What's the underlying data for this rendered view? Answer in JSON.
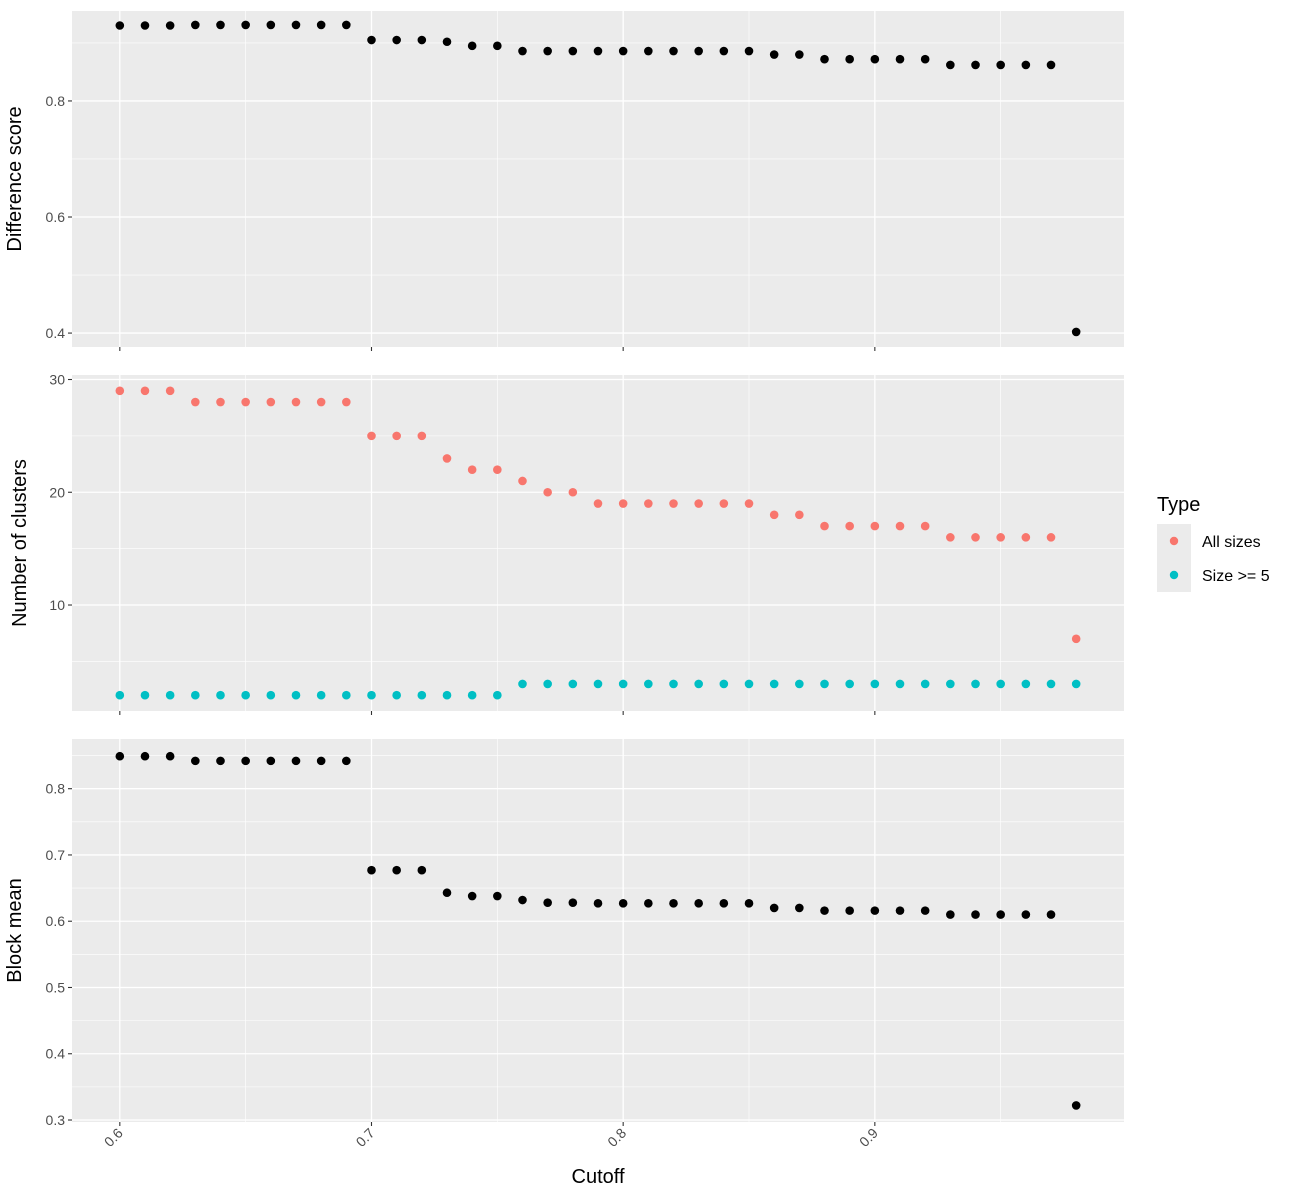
{
  "chart_data": {
    "type": "scatter",
    "x_label": "Cutoff",
    "x_tick_labels": [
      "0.6",
      "0.7",
      "0.8",
      "0.9"
    ],
    "x_ticks": [
      0.6,
      0.7,
      0.8,
      0.9
    ],
    "x_range": [
      0.581,
      0.999
    ],
    "x": [
      0.6,
      0.61,
      0.62,
      0.63,
      0.64,
      0.65,
      0.66,
      0.67,
      0.68,
      0.69,
      0.7,
      0.71,
      0.72,
      0.73,
      0.74,
      0.75,
      0.76,
      0.77,
      0.78,
      0.79,
      0.8,
      0.81,
      0.82,
      0.83,
      0.84,
      0.85,
      0.86,
      0.87,
      0.88,
      0.89,
      0.9,
      0.91,
      0.92,
      0.93,
      0.94,
      0.95,
      0.96,
      0.97,
      0.98
    ],
    "facets": [
      {
        "ylabel": "Difference score",
        "ylim": [
          0.376,
          0.955
        ],
        "y_ticks": [
          0.4,
          0.6,
          0.8
        ],
        "y_tick_labels": [
          "0.4",
          "0.6",
          "0.8"
        ],
        "series": [
          {
            "name": "",
            "color": "#000000",
            "values": [
              0.93,
              0.93,
              0.93,
              0.931,
              0.931,
              0.931,
              0.931,
              0.931,
              0.931,
              0.931,
              0.905,
              0.905,
              0.905,
              0.902,
              0.895,
              0.895,
              0.886,
              0.886,
              0.886,
              0.886,
              0.886,
              0.886,
              0.886,
              0.886,
              0.886,
              0.886,
              0.88,
              0.88,
              0.872,
              0.872,
              0.872,
              0.872,
              0.872,
              0.862,
              0.862,
              0.862,
              0.862,
              0.862,
              0.402
            ]
          }
        ]
      },
      {
        "ylabel": "Number of clusters",
        "ylim": [
          0.6,
          30.4
        ],
        "y_ticks": [
          10,
          20,
          30
        ],
        "y_tick_labels": [
          "10",
          "20",
          "30"
        ],
        "series": [
          {
            "name": "All sizes",
            "color": "#F8766D",
            "values": [
              29,
              29,
              29,
              28,
              28,
              28,
              28,
              28,
              28,
              28,
              25,
              25,
              25,
              23,
              22,
              22,
              21,
              20,
              20,
              19,
              19,
              19,
              19,
              19,
              19,
              19,
              18,
              18,
              17,
              17,
              17,
              17,
              17,
              16,
              16,
              16,
              16,
              16,
              7
            ]
          },
          {
            "name": "Size >= 5",
            "color": "#00BFC4",
            "values": [
              2,
              2,
              2,
              2,
              2,
              2,
              2,
              2,
              2,
              2,
              2,
              2,
              2,
              2,
              2,
              2,
              3,
              3,
              3,
              3,
              3,
              3,
              3,
              3,
              3,
              3,
              3,
              3,
              3,
              3,
              3,
              3,
              3,
              3,
              3,
              3,
              3,
              3,
              3
            ]
          }
        ]
      },
      {
        "ylabel": "Block mean",
        "ylim": [
          0.297,
          0.875
        ],
        "y_ticks": [
          0.3,
          0.4,
          0.5,
          0.6,
          0.7,
          0.8
        ],
        "y_tick_labels": [
          "0.3",
          "0.4",
          "0.5",
          "0.6",
          "0.7",
          "0.8"
        ],
        "series": [
          {
            "name": "",
            "color": "#000000",
            "values": [
              0.849,
              0.849,
              0.849,
              0.842,
              0.842,
              0.842,
              0.842,
              0.842,
              0.842,
              0.842,
              0.677,
              0.677,
              0.677,
              0.643,
              0.638,
              0.638,
              0.632,
              0.628,
              0.628,
              0.627,
              0.627,
              0.627,
              0.627,
              0.627,
              0.627,
              0.627,
              0.62,
              0.62,
              0.616,
              0.616,
              0.616,
              0.616,
              0.616,
              0.61,
              0.61,
              0.61,
              0.61,
              0.61,
              0.322
            ]
          }
        ]
      }
    ],
    "legend": {
      "title": "Type",
      "position": "right",
      "entries": [
        {
          "label": "All sizes",
          "color": "#F8766D"
        },
        {
          "label": "Size >= 5",
          "color": "#00BFC4"
        }
      ]
    },
    "grid": true,
    "panel_background": "#EBEBEB"
  }
}
